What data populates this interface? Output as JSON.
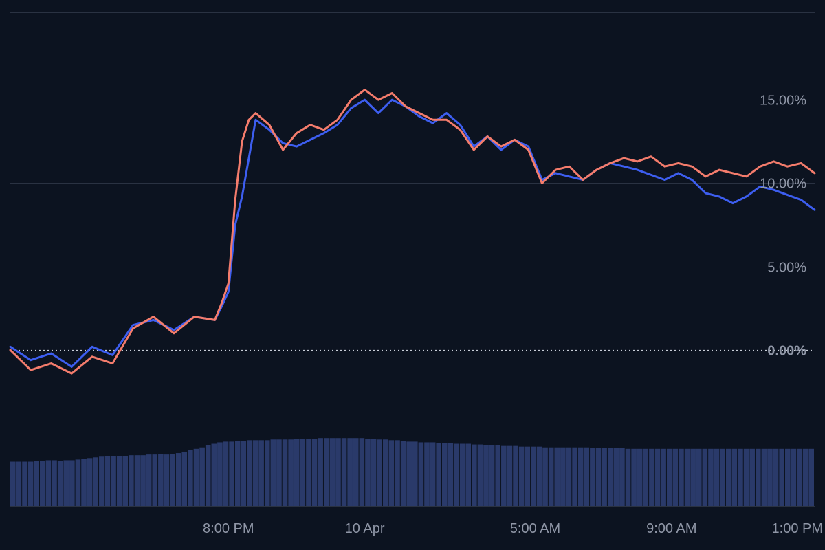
{
  "chart_data": {
    "type": "line",
    "title": "",
    "xlabel": "",
    "ylabel": "",
    "y_unit": "%",
    "ylim": [
      -4.9,
      20.2
    ],
    "y_ticks": [
      "0.00%",
      "5.00%",
      "10.00%",
      "15.00%"
    ],
    "y_tick_values": [
      0,
      5,
      10,
      15
    ],
    "x_tick_labels": [
      "8:00 PM",
      "10 Apr",
      "5:00 AM",
      "9:00 AM",
      "1:00 PM"
    ],
    "x_tick_hours": [
      20,
      24,
      29,
      33,
      37
    ],
    "x_range_hours": [
      13.6,
      37.2
    ],
    "baseline_label": "0.00%",
    "grid": true,
    "legend": "none",
    "series": [
      {
        "color": "#3d5ef0",
        "x_hours": [
          13.6,
          14.2,
          14.8,
          15.4,
          16.0,
          16.6,
          17.2,
          17.8,
          18.4,
          19.0,
          19.6,
          19.8,
          20.0,
          20.2,
          20.4,
          20.6,
          20.8,
          21.2,
          21.6,
          22.0,
          22.4,
          22.8,
          23.2,
          23.6,
          24.0,
          24.4,
          24.8,
          25.2,
          25.6,
          26.0,
          26.4,
          26.8,
          27.2,
          27.6,
          28.0,
          28.4,
          28.8,
          29.2,
          29.6,
          30.0,
          30.4,
          30.8,
          31.2,
          31.6,
          32.0,
          32.4,
          32.8,
          33.2,
          33.6,
          34.0,
          34.4,
          34.8,
          35.2,
          35.6,
          36.0,
          36.4,
          36.8,
          37.2
        ],
        "values": [
          0.2,
          -0.6,
          -0.2,
          -1.0,
          0.2,
          -0.3,
          1.5,
          1.8,
          1.2,
          2.0,
          1.8,
          2.6,
          3.5,
          7.5,
          9.2,
          11.5,
          13.8,
          13.2,
          12.4,
          12.2,
          12.6,
          13.0,
          13.5,
          14.5,
          15.0,
          14.2,
          15.0,
          14.6,
          14.0,
          13.6,
          14.2,
          13.5,
          12.2,
          12.8,
          12.0,
          12.6,
          12.2,
          10.2,
          10.6,
          10.4,
          10.2,
          10.8,
          11.2,
          11.0,
          10.8,
          10.5,
          10.2,
          10.6,
          10.2,
          9.4,
          9.2,
          8.8,
          9.2,
          9.8,
          9.6,
          9.3,
          9.0,
          8.4
        ]
      },
      {
        "color": "#f47c6c",
        "x_hours": [
          13.6,
          14.2,
          14.8,
          15.4,
          16.0,
          16.6,
          17.2,
          17.8,
          18.4,
          19.0,
          19.6,
          19.8,
          20.0,
          20.2,
          20.4,
          20.6,
          20.8,
          21.2,
          21.6,
          22.0,
          22.4,
          22.8,
          23.2,
          23.6,
          24.0,
          24.4,
          24.8,
          25.2,
          25.6,
          26.0,
          26.4,
          26.8,
          27.2,
          27.6,
          28.0,
          28.4,
          28.8,
          29.2,
          29.6,
          30.0,
          30.4,
          30.8,
          31.2,
          31.6,
          32.0,
          32.4,
          32.8,
          33.2,
          33.6,
          34.0,
          34.4,
          34.8,
          35.2,
          35.6,
          36.0,
          36.4,
          36.8,
          37.2
        ],
        "values": [
          0.0,
          -1.2,
          -0.8,
          -1.4,
          -0.4,
          -0.8,
          1.3,
          2.0,
          1.0,
          2.0,
          1.8,
          2.8,
          4.0,
          9.0,
          12.5,
          13.8,
          14.2,
          13.5,
          12.0,
          13.0,
          13.5,
          13.2,
          13.8,
          15.0,
          15.6,
          15.0,
          15.4,
          14.6,
          14.2,
          13.8,
          13.8,
          13.2,
          12.0,
          12.8,
          12.2,
          12.6,
          12.0,
          10.0,
          10.8,
          11.0,
          10.2,
          10.8,
          11.2,
          11.5,
          11.3,
          11.6,
          11.0,
          11.2,
          11.0,
          10.4,
          10.8,
          10.6,
          10.4,
          11.0,
          11.3,
          11.0,
          11.2,
          10.6
        ]
      }
    ],
    "volume": {
      "color": "#2a3a6a",
      "max": 100,
      "values": [
        62,
        62,
        62,
        62,
        63,
        63,
        64,
        64,
        63,
        64,
        64,
        65,
        66,
        67,
        68,
        69,
        70,
        70,
        70,
        70,
        71,
        71,
        71,
        72,
        72,
        73,
        72,
        73,
        74,
        76,
        78,
        80,
        82,
        85,
        87,
        89,
        90,
        90,
        91,
        91,
        92,
        92,
        92,
        92,
        93,
        93,
        93,
        93,
        94,
        94,
        94,
        94,
        95,
        95,
        95,
        95,
        95,
        95,
        95,
        95,
        94,
        94,
        93,
        93,
        92,
        92,
        91,
        90,
        90,
        89,
        89,
        89,
        88,
        88,
        88,
        87,
        87,
        87,
        86,
        86,
        85,
        85,
        85,
        84,
        84,
        84,
        83,
        83,
        83,
        83,
        82,
        82,
        82,
        82,
        82,
        82,
        82,
        82,
        81,
        81,
        81,
        81,
        81,
        81,
        80,
        80,
        80,
        80,
        80,
        80,
        80,
        80,
        80,
        80,
        80,
        80,
        80,
        80,
        80,
        80,
        80,
        80,
        80,
        80,
        80,
        80,
        80,
        80,
        80,
        80,
        80,
        80,
        80,
        80,
        80,
        80
      ]
    }
  }
}
